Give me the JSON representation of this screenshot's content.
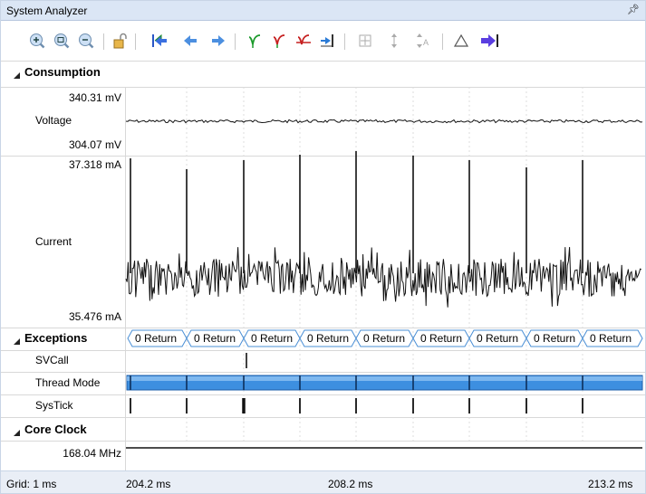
{
  "window": {
    "title": "System Analyzer",
    "pin_icon": "pin-icon"
  },
  "toolbar": {
    "buttons": [
      {
        "name": "zoom-in-button",
        "icon": "zoom-in-icon"
      },
      {
        "name": "zoom-fit-button",
        "icon": "zoom-fit-icon"
      },
      {
        "name": "zoom-out-button",
        "icon": "zoom-out-icon"
      },
      {
        "name": "lock-button",
        "icon": "padlock-icon"
      },
      {
        "name": "jump-start-button",
        "icon": "jump-to-start-icon"
      },
      {
        "name": "previous-button",
        "icon": "arrow-left-icon"
      },
      {
        "name": "next-button",
        "icon": "arrow-right-icon"
      },
      {
        "name": "prev-edge-button",
        "icon": "previous-edge-icon"
      },
      {
        "name": "next-edge-button",
        "icon": "next-edge-icon"
      },
      {
        "name": "cursor-edge-button",
        "icon": "cursor-edge-icon"
      },
      {
        "name": "jump-marker-button",
        "icon": "jump-marker-icon"
      },
      {
        "name": "expand-button",
        "icon": "expand-icon"
      },
      {
        "name": "vertical-fit-button",
        "icon": "vertical-fit-icon"
      },
      {
        "name": "auto-scale-button",
        "icon": "auto-scale-icon"
      },
      {
        "name": "delta-button",
        "icon": "delta-icon"
      },
      {
        "name": "jump-end-button",
        "icon": "jump-to-end-icon"
      }
    ]
  },
  "sections": {
    "consumption": "Consumption",
    "exceptions": "Exceptions",
    "core_clock": "Core Clock"
  },
  "consumption": {
    "voltage": {
      "label": "Voltage",
      "max": "340.31 mV",
      "min": "304.07 mV"
    },
    "current": {
      "label": "Current",
      "max": "37.318 mA",
      "min": "35.476 mA"
    }
  },
  "exceptions": {
    "return_label": "0 Return",
    "rows": [
      "SVCall",
      "Thread Mode",
      "SysTick"
    ]
  },
  "core_clock": {
    "value": "168.04 MHz"
  },
  "status": {
    "grid": "Grid: 1 ms",
    "ticks": [
      "204.2 ms",
      "208.2 ms",
      "213.2 ms"
    ]
  },
  "colors": {
    "thread_fill": "#3d8fe0",
    "thread_light": "#8fc2f2",
    "return_border": "#4a8fd6",
    "grid_line": "#dcdcdc"
  }
}
